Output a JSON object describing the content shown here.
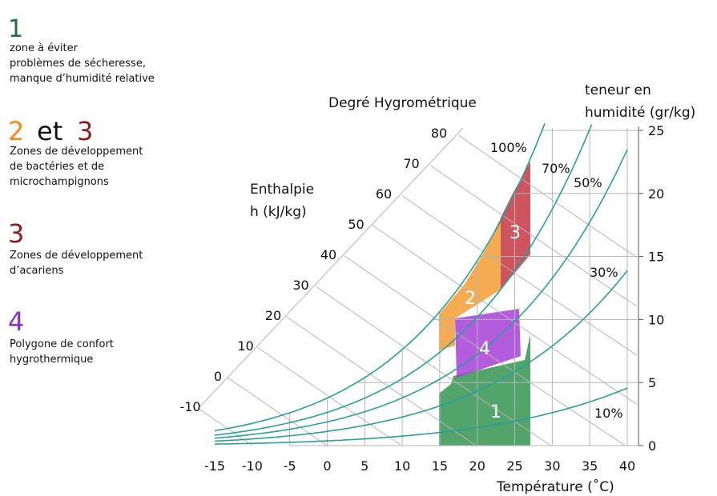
{
  "legend": [
    {
      "numbers": [
        "1"
      ],
      "lines": [
        "zone à éviter",
        "problèmes de sécheresse,",
        "manque d’humidité relative"
      ]
    },
    {
      "numbers": [
        "2",
        "et",
        "3"
      ],
      "lines": [
        "Zones de développement",
        "de bactéries et de",
        "microchampignons"
      ]
    },
    {
      "numbers": [
        "3"
      ],
      "lines": [
        "Zones de développement",
        "d’acariens"
      ]
    },
    {
      "numbers": [
        "4"
      ],
      "lines": [
        "Polygone de confort",
        "hygrothermique"
      ]
    }
  ],
  "title": "Degré Hygrométrique",
  "x_axis": {
    "label": "Température (˚C)",
    "ticks": [
      -15,
      -10,
      -5,
      0,
      5,
      10,
      15,
      20,
      25,
      30,
      35,
      40
    ]
  },
  "y_axis": {
    "label": [
      "teneur en",
      "humidité (gr/kg)"
    ],
    "ticks": [
      0,
      5,
      10,
      15,
      20,
      25
    ]
  },
  "enthalpy": {
    "label": [
      "Enthalpie",
      "h (kJ/kg)"
    ],
    "ticks": [
      -10,
      0,
      10,
      20,
      30,
      40,
      50,
      60,
      70,
      80
    ]
  },
  "curves": [
    {
      "label": "100%",
      "rh": 100
    },
    {
      "label": "70%",
      "rh": 70
    },
    {
      "label": "50%",
      "rh": 50
    },
    {
      "label": "30%",
      "rh": 30
    },
    {
      "label": "10%",
      "rh": 10
    }
  ],
  "zones": [
    "1",
    "2",
    "3",
    "4"
  ]
}
